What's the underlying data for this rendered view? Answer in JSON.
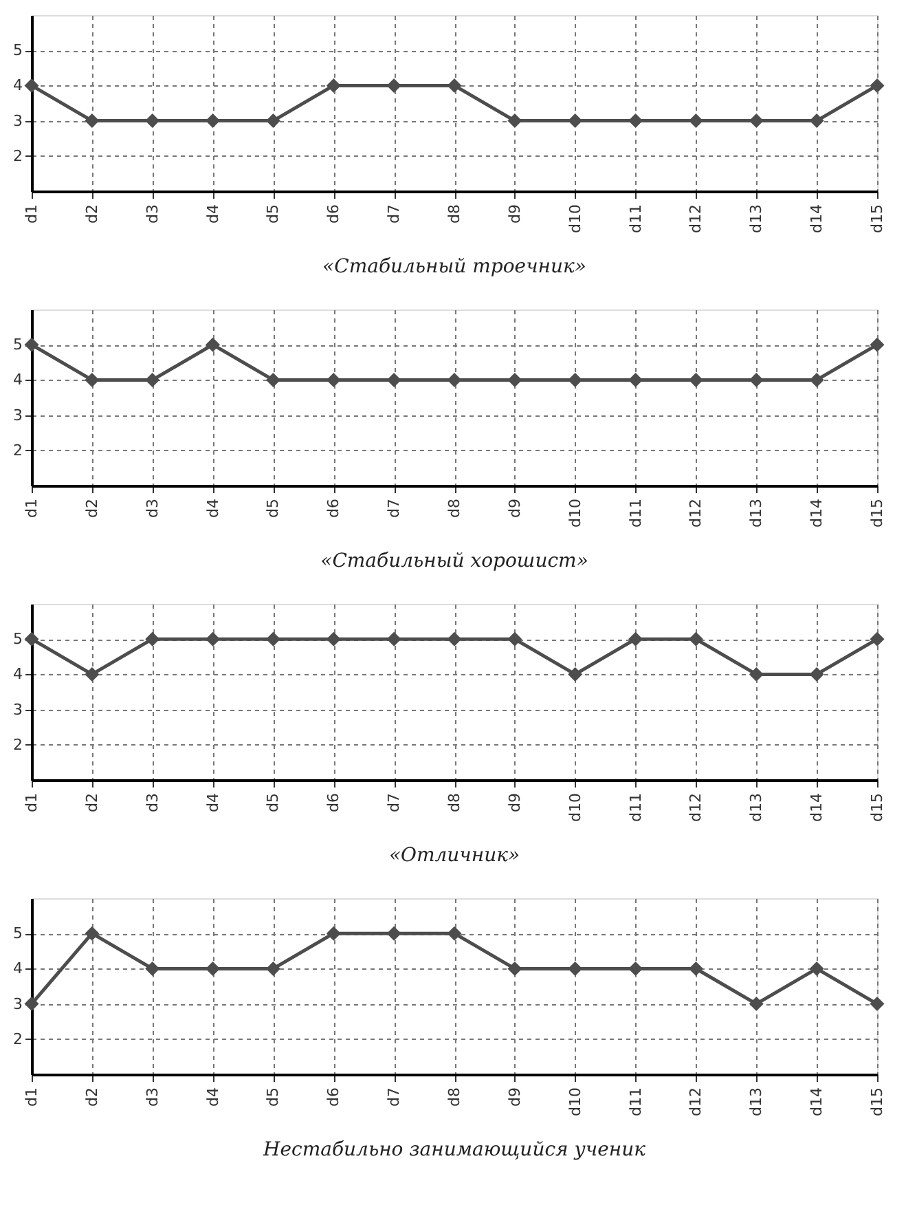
{
  "chart_data": [
    {
      "type": "line",
      "title": "«Стабильный троечник»",
      "categories": [
        "d1",
        "d2",
        "d3",
        "d4",
        "d5",
        "d6",
        "d7",
        "d8",
        "d9",
        "d10",
        "d11",
        "d12",
        "d13",
        "d14",
        "d15"
      ],
      "values": [
        4,
        3,
        3,
        3,
        3,
        4,
        4,
        4,
        3,
        3,
        3,
        3,
        3,
        3,
        4
      ],
      "color": "#4d4d4d",
      "ylim": [
        1,
        6
      ],
      "yticks": [
        2,
        3,
        4,
        5
      ],
      "grid": true,
      "marker": "diamond",
      "line_style": "solid"
    },
    {
      "type": "line",
      "title": "«Стабильный хорошист»",
      "categories": [
        "d1",
        "d2",
        "d3",
        "d4",
        "d5",
        "d6",
        "d7",
        "d8",
        "d9",
        "d10",
        "d11",
        "d12",
        "d13",
        "d14",
        "d15"
      ],
      "values": [
        5,
        4,
        4,
        5,
        4,
        4,
        4,
        4,
        4,
        4,
        4,
        4,
        4,
        4,
        5
      ],
      "color": "#4d4d4d",
      "ylim": [
        1,
        6
      ],
      "yticks": [
        2,
        3,
        4,
        5
      ],
      "grid": true,
      "marker": "diamond",
      "line_style": "solid"
    },
    {
      "type": "line",
      "title": "«Отличник»",
      "categories": [
        "d1",
        "d2",
        "d3",
        "d4",
        "d5",
        "d6",
        "d7",
        "d8",
        "d9",
        "d10",
        "d11",
        "d12",
        "d13",
        "d14",
        "d15"
      ],
      "values": [
        5,
        4,
        5,
        5,
        5,
        5,
        5,
        5,
        5,
        4,
        5,
        5,
        4,
        4,
        5
      ],
      "color": "#4d4d4d",
      "ylim": [
        1,
        6
      ],
      "yticks": [
        2,
        3,
        4,
        5
      ],
      "grid": true,
      "marker": "diamond",
      "line_style": "solid"
    },
    {
      "type": "line",
      "title": "Нестабильно занимающийся ученик",
      "categories": [
        "d1",
        "d2",
        "d3",
        "d4",
        "d5",
        "d6",
        "d7",
        "d8",
        "d9",
        "d10",
        "d11",
        "d12",
        "d13",
        "d14",
        "d15"
      ],
      "values": [
        3,
        5,
        4,
        4,
        4,
        5,
        5,
        5,
        4,
        4,
        4,
        4,
        3,
        4,
        3
      ],
      "color": "#4d4d4d",
      "ylim": [
        1,
        6
      ],
      "yticks": [
        2,
        3,
        4,
        5
      ],
      "grid": true,
      "marker": "diamond",
      "line_style": "solid"
    }
  ]
}
